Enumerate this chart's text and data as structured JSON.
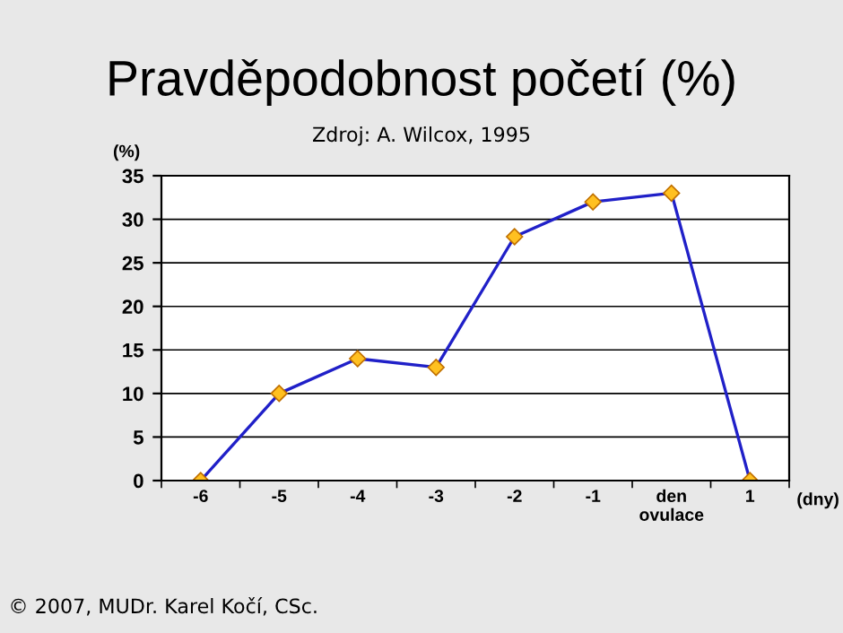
{
  "chart_data": {
    "type": "line",
    "title": "Pravděpodobnost početí (%)",
    "subtitle": "Zdroj: A. Wilcox, 1995",
    "ylabel": "(%)",
    "xlabel": "(dny)",
    "categories": [
      "-6",
      "-5",
      "-4",
      "-3",
      "-2",
      "-1",
      "den\novulace",
      "1"
    ],
    "series": [
      {
        "color": "#2020c8",
        "values": [
          0,
          10,
          14,
          13,
          28,
          32,
          33,
          0
        ]
      }
    ],
    "ylim": [
      0,
      35
    ],
    "yticks": [
      0,
      5,
      10,
      15,
      20,
      25,
      30,
      35
    ],
    "grid": "y",
    "marker": "diamond",
    "line_style": "solid",
    "legend": false,
    "annotations": [
      "© 2007, MUDr. Karel Kočí, CSc."
    ]
  }
}
